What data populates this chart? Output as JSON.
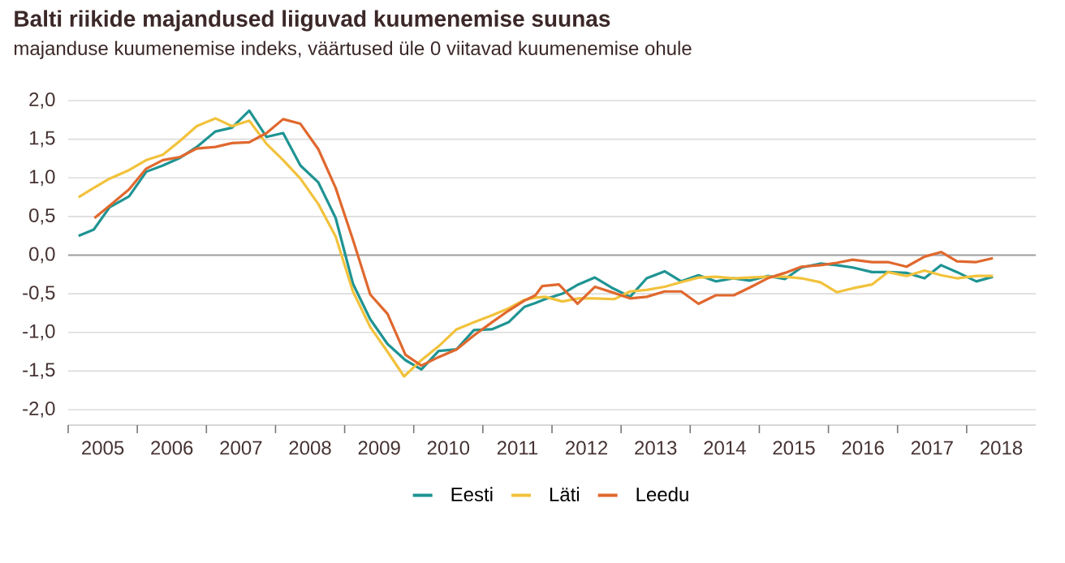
{
  "chart_data": {
    "type": "line",
    "title": "Balti riikide majandused liiguvad kuumenemise suunas",
    "subtitle": "majanduse kuumenemise indeks, väärtused üle 0 viitavad kuumenemise ohule",
    "xlim": [
      2005,
      2019
    ],
    "xticks": [
      {
        "value": 2005,
        "label": null
      },
      {
        "value": 2005.5,
        "label": "2005"
      },
      {
        "value": 2006,
        "label": null
      },
      {
        "value": 2006.5,
        "label": "2006"
      },
      {
        "value": 2007,
        "label": null
      },
      {
        "value": 2007.5,
        "label": "2007"
      },
      {
        "value": 2008,
        "label": null
      },
      {
        "value": 2008.5,
        "label": "2008"
      },
      {
        "value": 2009,
        "label": null
      },
      {
        "value": 2009.5,
        "label": "2009"
      },
      {
        "value": 2010,
        "label": null
      },
      {
        "value": 2010.5,
        "label": "2010"
      },
      {
        "value": 2011,
        "label": null
      },
      {
        "value": 2011.5,
        "label": "2011"
      },
      {
        "value": 2012,
        "label": null
      },
      {
        "value": 2012.5,
        "label": "2012"
      },
      {
        "value": 2013,
        "label": null
      },
      {
        "value": 2013.5,
        "label": "2013"
      },
      {
        "value": 2014,
        "label": null
      },
      {
        "value": 2014.5,
        "label": "2014"
      },
      {
        "value": 2015,
        "label": null
      },
      {
        "value": 2015.5,
        "label": "2015"
      },
      {
        "value": 2016,
        "label": null
      },
      {
        "value": 2016.5,
        "label": "2016"
      },
      {
        "value": 2017,
        "label": null
      },
      {
        "value": 2017.5,
        "label": "2017"
      },
      {
        "value": 2018,
        "label": null
      },
      {
        "value": 2018.5,
        "label": "2018"
      }
    ],
    "ylim": [
      -2.2,
      2
    ],
    "yticks": [
      {
        "value": -2,
        "label": "-2,0"
      },
      {
        "value": -1.5,
        "label": "-1,5"
      },
      {
        "value": -1,
        "label": "-1,0"
      },
      {
        "value": -0.5,
        "label": "-0,5"
      },
      {
        "value": 0,
        "label": "0,0"
      },
      {
        "value": 0.5,
        "label": "0,5"
      },
      {
        "value": 1,
        "label": "1,0"
      },
      {
        "value": 1.5,
        "label": "1,5"
      },
      {
        "value": 2,
        "label": "2,0"
      }
    ],
    "grid": "y",
    "legend": "bottom",
    "ref_lines": [
      {
        "axis": "y",
        "value": 0,
        "color": "#a0a0a0"
      }
    ],
    "series": [
      {
        "name": "Eesti",
        "color": "#1f9493",
        "x": [
          2005.15,
          2005.37,
          2005.6,
          2005.88,
          2006.13,
          2006.37,
          2006.62,
          2006.86,
          2007.13,
          2007.37,
          2007.62,
          2007.87,
          2008.11,
          2008.36,
          2008.62,
          2008.87,
          2009.12,
          2009.37,
          2009.62,
          2009.88,
          2010.11,
          2010.36,
          2010.62,
          2010.87,
          2011.13,
          2011.37,
          2011.6,
          2011.76,
          2011.9,
          2012.15,
          2012.38,
          2012.62,
          2012.86,
          2013.13,
          2013.37,
          2013.63,
          2013.87,
          2014.12,
          2014.37,
          2014.63,
          2014.86,
          2015.12,
          2015.37,
          2015.61,
          2015.88,
          2016.12,
          2016.35,
          2016.63,
          2016.86,
          2017.13,
          2017.39,
          2017.63,
          2017.86,
          2018.14,
          2018.38
        ],
        "values": [
          0.25,
          0.33,
          0.62,
          0.76,
          1.08,
          1.16,
          1.26,
          1.4,
          1.6,
          1.65,
          1.87,
          1.53,
          1.58,
          1.16,
          0.94,
          0.48,
          -0.37,
          -0.83,
          -1.15,
          -1.36,
          -1.48,
          -1.24,
          -1.22,
          -0.97,
          -0.96,
          -0.87,
          -0.67,
          -0.62,
          -0.57,
          -0.5,
          -0.38,
          -0.29,
          -0.42,
          -0.54,
          -0.3,
          -0.21,
          -0.34,
          -0.26,
          -0.34,
          -0.3,
          -0.33,
          -0.27,
          -0.31,
          -0.16,
          -0.11,
          -0.13,
          -0.16,
          -0.22,
          -0.22,
          -0.23,
          -0.3,
          -0.13,
          -0.22,
          -0.34,
          -0.28
        ]
      },
      {
        "name": "Läti",
        "color": "#f2c23c",
        "x": [
          2005.15,
          2005.37,
          2005.6,
          2005.88,
          2006.13,
          2006.37,
          2006.62,
          2006.86,
          2007.13,
          2007.37,
          2007.62,
          2007.87,
          2008.11,
          2008.36,
          2008.62,
          2008.87,
          2009.12,
          2009.37,
          2009.62,
          2009.86,
          2010.11,
          2010.36,
          2010.62,
          2010.87,
          2011.13,
          2011.37,
          2011.6,
          2011.76,
          2011.9,
          2012.15,
          2012.38,
          2012.62,
          2012.9,
          2013.13,
          2013.37,
          2013.63,
          2013.87,
          2014.12,
          2014.37,
          2014.63,
          2014.86,
          2015.12,
          2015.37,
          2015.61,
          2015.88,
          2016.12,
          2016.35,
          2016.63,
          2016.86,
          2017.13,
          2017.39,
          2017.63,
          2017.86,
          2018.14,
          2018.38
        ],
        "values": [
          0.75,
          0.87,
          0.99,
          1.1,
          1.23,
          1.3,
          1.48,
          1.67,
          1.77,
          1.67,
          1.74,
          1.44,
          1.23,
          0.99,
          0.66,
          0.24,
          -0.47,
          -0.93,
          -1.25,
          -1.57,
          -1.36,
          -1.18,
          -0.96,
          -0.87,
          -0.78,
          -0.69,
          -0.58,
          -0.55,
          -0.54,
          -0.6,
          -0.56,
          -0.56,
          -0.57,
          -0.47,
          -0.45,
          -0.41,
          -0.35,
          -0.29,
          -0.28,
          -0.3,
          -0.29,
          -0.28,
          -0.28,
          -0.3,
          -0.35,
          -0.48,
          -0.43,
          -0.38,
          -0.22,
          -0.27,
          -0.2,
          -0.26,
          -0.3,
          -0.27,
          -0.27
        ]
      },
      {
        "name": "Leedu",
        "color": "#e0682e",
        "x": [
          2005.38,
          2005.6,
          2005.88,
          2006.13,
          2006.37,
          2006.62,
          2006.86,
          2007.13,
          2007.37,
          2007.62,
          2007.87,
          2008.11,
          2008.36,
          2008.62,
          2008.87,
          2009.12,
          2009.37,
          2009.62,
          2009.88,
          2010.11,
          2010.36,
          2010.62,
          2010.87,
          2011.13,
          2011.37,
          2011.6,
          2011.76,
          2011.86,
          2012.1,
          2012.37,
          2012.62,
          2012.9,
          2013.13,
          2013.37,
          2013.63,
          2013.87,
          2014.12,
          2014.37,
          2014.63,
          2014.86,
          2015.12,
          2015.37,
          2015.61,
          2015.88,
          2016.12,
          2016.35,
          2016.63,
          2016.86,
          2017.13,
          2017.39,
          2017.63,
          2017.86,
          2018.14,
          2018.38
        ],
        "values": [
          0.48,
          0.64,
          0.85,
          1.12,
          1.23,
          1.27,
          1.38,
          1.4,
          1.45,
          1.46,
          1.58,
          1.76,
          1.7,
          1.37,
          0.87,
          0.2,
          -0.51,
          -0.76,
          -1.29,
          -1.43,
          -1.32,
          -1.22,
          -1.04,
          -0.87,
          -0.72,
          -0.59,
          -0.52,
          -0.4,
          -0.38,
          -0.63,
          -0.41,
          -0.49,
          -0.56,
          -0.54,
          -0.47,
          -0.47,
          -0.63,
          -0.52,
          -0.52,
          -0.42,
          -0.3,
          -0.23,
          -0.15,
          -0.13,
          -0.1,
          -0.06,
          -0.09,
          -0.09,
          -0.15,
          -0.02,
          0.04,
          -0.08,
          -0.09,
          -0.04
        ]
      }
    ]
  }
}
